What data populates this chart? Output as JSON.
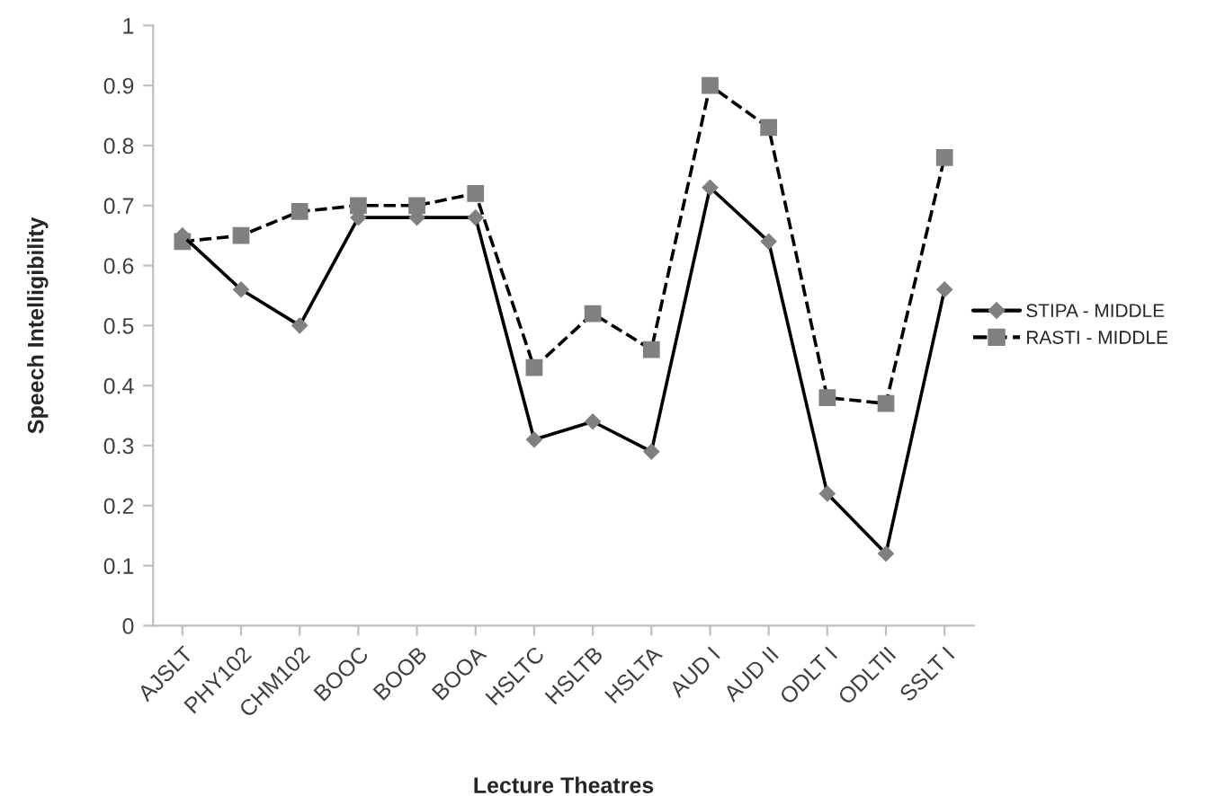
{
  "chart_data": {
    "type": "line",
    "xlabel": "Lecture Theatres",
    "ylabel": "Speech Intelligibility",
    "categories": [
      "AJSLT",
      "PHY102",
      "CHM102",
      "BOOC",
      "BOOB",
      "BOOA",
      "HSLTC",
      "HSLTB",
      "HSLTA",
      "AUD I",
      "AUD II",
      "ODLT I",
      "ODLTII",
      "SSLT I"
    ],
    "series": [
      {
        "name": "STIPA - MIDDLE",
        "color": "#000000",
        "marker": "diamond",
        "line_style": "solid",
        "values": [
          0.65,
          0.56,
          0.5,
          0.68,
          0.68,
          0.68,
          0.31,
          0.34,
          0.29,
          0.73,
          0.64,
          0.22,
          0.12,
          0.56
        ]
      },
      {
        "name": "RASTI - MIDDLE",
        "color": "#000000",
        "marker": "square",
        "line_style": "dashed",
        "values": [
          0.64,
          0.65,
          0.69,
          0.7,
          0.7,
          0.72,
          0.43,
          0.52,
          0.46,
          0.9,
          0.83,
          0.38,
          0.37,
          0.78
        ]
      }
    ],
    "ylim": [
      0,
      1
    ],
    "yticks": [
      0,
      0.1,
      0.2,
      0.3,
      0.4,
      0.5,
      0.6,
      0.7,
      0.8,
      0.9,
      1
    ],
    "grid": false,
    "legend": "right"
  }
}
